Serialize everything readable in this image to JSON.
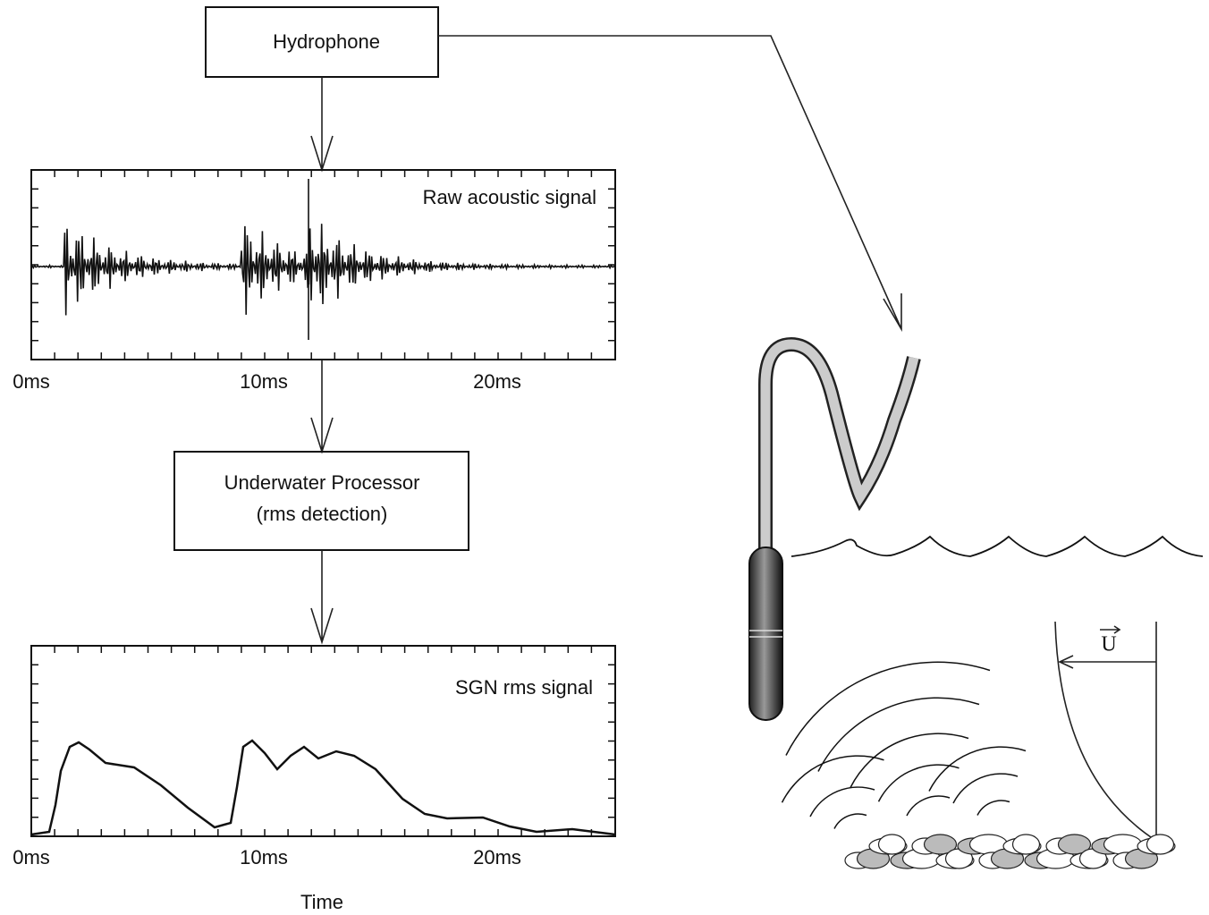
{
  "hydrophone_box": {
    "label": "Hydrophone"
  },
  "raw_plot": {
    "label": "Raw acoustic signal",
    "x_labels": [
      "0ms",
      "10ms",
      "20ms"
    ]
  },
  "processor_box": {
    "lines": [
      "Underwater Processor",
      "(rms detection)"
    ]
  },
  "rms_plot": {
    "label": "SGN rms signal",
    "x_labels": [
      "0ms",
      "10ms",
      "20ms"
    ],
    "x_title": "Time"
  },
  "velocity_label": "U"
}
